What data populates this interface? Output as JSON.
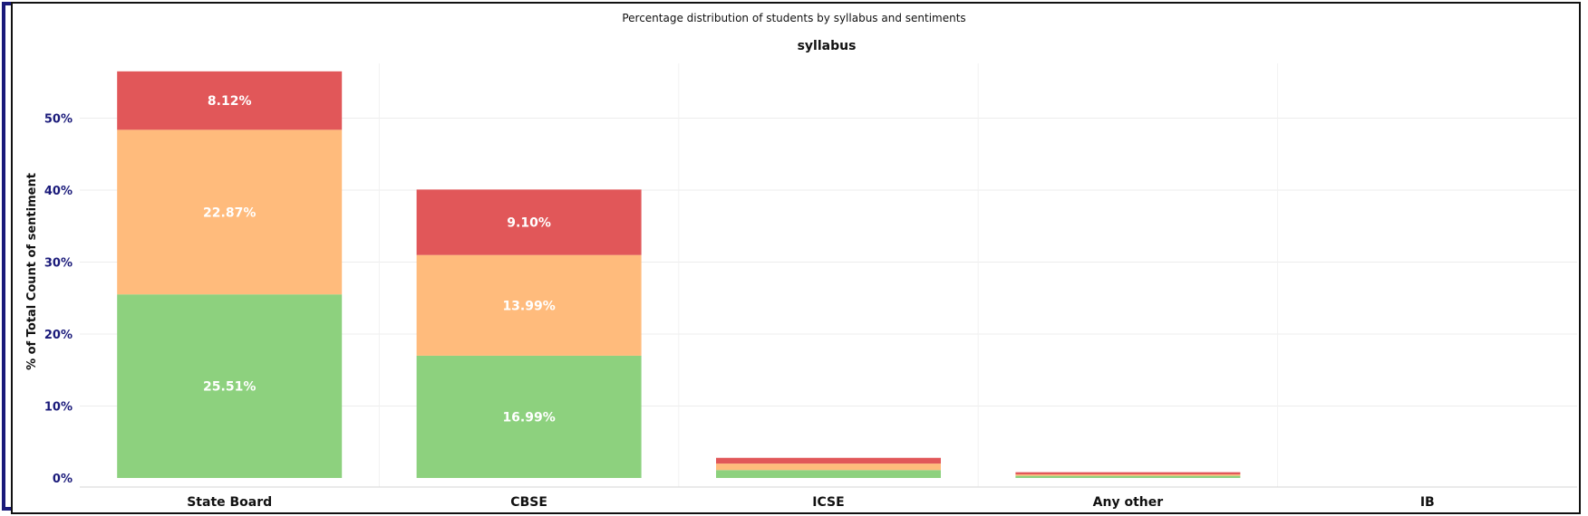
{
  "chart_data": {
    "type": "bar",
    "stacked": true,
    "title": "Percentage distribution of students by syllabus and sentiments",
    "subtitle": "syllabus",
    "ylabel": "% of Total Count of sentiment",
    "xlabel": "",
    "ylim": [
      0,
      59
    ],
    "yticks": [
      0,
      10,
      20,
      30,
      40,
      50
    ],
    "ytick_labels": [
      "0%",
      "10%",
      "20%",
      "30%",
      "40%",
      "50%"
    ],
    "grid": true,
    "legend": "none",
    "categories": [
      "State Board",
      "CBSE",
      "ICSE",
      "Any other",
      "IB"
    ],
    "series": [
      {
        "color": "#8dd17e",
        "values": [
          25.51,
          16.99,
          1.1,
          0.3,
          0
        ],
        "labels": [
          "25.51%",
          "16.99%",
          "",
          "",
          ""
        ]
      },
      {
        "color": "#ffbb7c",
        "values": [
          22.87,
          13.99,
          0.9,
          0.2,
          0
        ],
        "labels": [
          "22.87%",
          "13.99%",
          "",
          "",
          ""
        ]
      },
      {
        "color": "#e15759",
        "values": [
          8.12,
          9.1,
          0.8,
          0.3,
          0
        ],
        "labels": [
          "8.12%",
          "9.10%",
          "",
          "",
          ""
        ]
      }
    ]
  }
}
